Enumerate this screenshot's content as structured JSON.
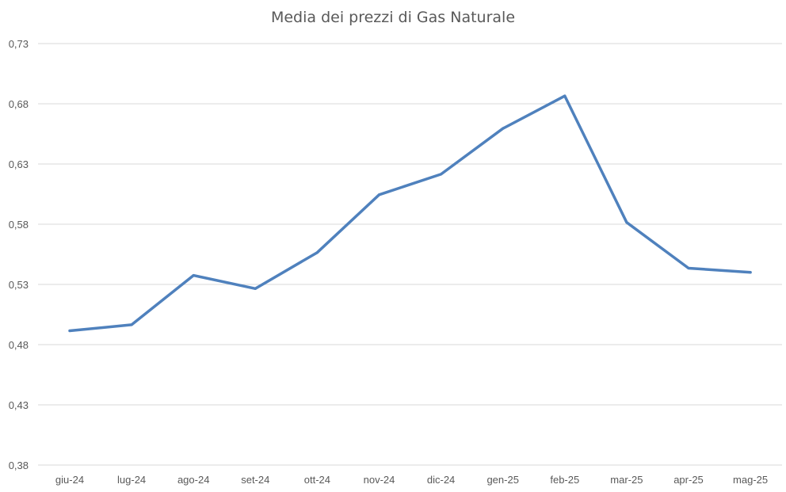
{
  "chart_data": {
    "type": "line",
    "title": "Media dei prezzi di Gas Naturale",
    "xlabel": "",
    "ylabel": "",
    "categories": [
      "giu-24",
      "lug-24",
      "ago-24",
      "set-24",
      "ott-24",
      "nov-24",
      "dic-24",
      "gen-25",
      "feb-25",
      "mar-25",
      "apr-25",
      "mag-25"
    ],
    "series": [
      {
        "values": [
          0.4915,
          0.4965,
          0.5375,
          0.5265,
          0.5565,
          0.6045,
          0.6215,
          0.6595,
          0.6865,
          0.5815,
          0.5435,
          0.54
        ]
      }
    ],
    "ylim": [
      0.38,
      0.73
    ],
    "yticks": [
      "0,38",
      "0,43",
      "0,48",
      "0,53",
      "0,58",
      "0,63",
      "0,68",
      "0,73"
    ],
    "grid": true,
    "legend": "none",
    "colors": {
      "line": "#4f81bd",
      "grid": "#d9d9d9",
      "text": "#595959"
    }
  }
}
